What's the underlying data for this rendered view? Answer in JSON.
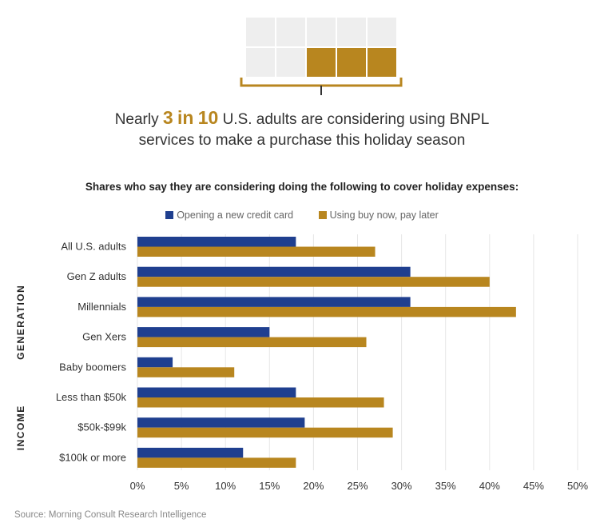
{
  "header": {
    "lead": "Nearly",
    "emphasis_num1": "3",
    "emphasis_mid": "in",
    "emphasis_num2": "10",
    "headline_rest": "U.S. adults are considering using BNPL services to make a purchase this holiday season",
    "grid_filled": 3,
    "grid_total": 10
  },
  "chart_data": {
    "type": "bar",
    "orientation": "horizontal",
    "title": "Shares who say they are considering doing the following to cover holiday expenses:",
    "categories": [
      "All U.S. adults",
      "Gen Z adults",
      "Millennials",
      "Gen Xers",
      "Baby boomers",
      "Less than $50k",
      "$50k-$99k",
      "$100k or more"
    ],
    "groups": [
      {
        "label": "GENERATION",
        "from": 1,
        "to": 4
      },
      {
        "label": "INCOME",
        "from": 5,
        "to": 7
      }
    ],
    "series": [
      {
        "name": "Opening a new credit card",
        "color": "#1f3f8f",
        "values": [
          18,
          31,
          31,
          15,
          4,
          18,
          19,
          12
        ]
      },
      {
        "name": "Using buy now, pay later",
        "color": "#b8861f",
        "values": [
          27,
          40,
          43,
          26,
          11,
          28,
          29,
          18
        ]
      }
    ],
    "xlim": [
      0,
      50
    ],
    "xticks": [
      "0%",
      "5%",
      "10%",
      "15%",
      "20%",
      "25%",
      "30%",
      "35%",
      "40%",
      "45%",
      "50%"
    ],
    "grid": true,
    "legend": "top"
  },
  "colors": {
    "accent_gold": "#b8861f",
    "navy": "#1f3f8f",
    "grid": "#e6e6e6"
  },
  "source": "Source: Morning Consult Research Intelligence"
}
